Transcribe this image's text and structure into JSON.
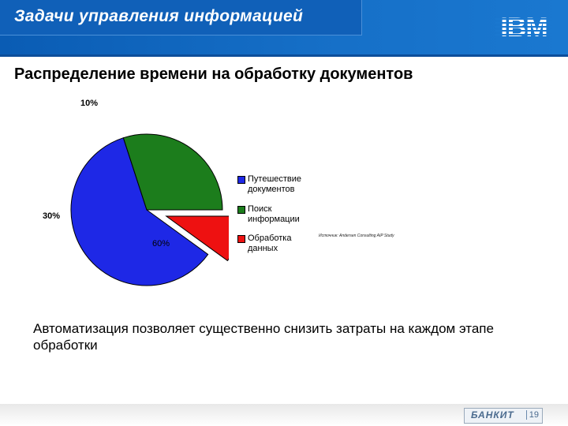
{
  "header": {
    "title": "Задачи управления информацией",
    "logo_text": "IBM"
  },
  "slide": {
    "subtitle": "Распределение времени на обработку документов",
    "source_note": "Источник: Andersen Consulting AIP Study",
    "body_text": "Автоматизация позволяет существенно снизить затраты на каждом этапе обработки"
  },
  "footer": {
    "brand": "БАНКИТ",
    "page_number": "19"
  },
  "chart_data": {
    "type": "pie",
    "values": [
      60,
      30,
      10
    ],
    "slice_labels": [
      "60%",
      "30%",
      "10%"
    ],
    "legend": [
      "Путешествие документов",
      "Поиск информации",
      "Обработка данных"
    ],
    "colors": [
      "#1e28e6",
      "#1c7d1c",
      "#ee1111"
    ],
    "exploded_slice": 2,
    "legend_position": "right"
  }
}
